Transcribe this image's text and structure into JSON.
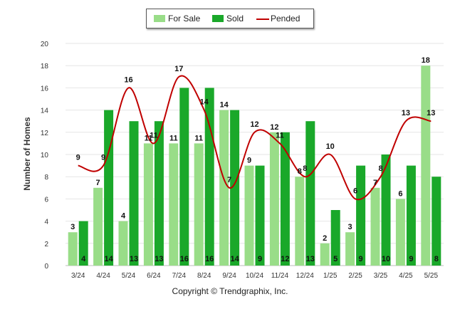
{
  "chart_data": {
    "type": "bar",
    "categories": [
      "3/24",
      "4/24",
      "5/24",
      "6/24",
      "7/24",
      "8/24",
      "9/24",
      "10/24",
      "11/24",
      "12/24",
      "1/25",
      "2/25",
      "3/25",
      "4/25",
      "5/25"
    ],
    "series": [
      {
        "name": "For Sale",
        "type": "bar",
        "color": "#99dd88",
        "values": [
          3,
          7,
          4,
          11,
          11,
          11,
          14,
          9,
          12,
          8,
          2,
          3,
          7,
          6,
          18
        ]
      },
      {
        "name": "Sold",
        "type": "bar",
        "color": "#1aa82a",
        "values": [
          4,
          14,
          13,
          13,
          16,
          16,
          14,
          9,
          12,
          13,
          5,
          9,
          10,
          9,
          8
        ]
      },
      {
        "name": "Pended",
        "type": "line",
        "color": "#c00000",
        "values": [
          9,
          9,
          16,
          11,
          17,
          14,
          7,
          12,
          11,
          8,
          10,
          6,
          8,
          13,
          13
        ]
      }
    ],
    "ylabel": "Number of Homes",
    "xlabel": "",
    "ylim": [
      0,
      20
    ],
    "yticks": [
      0,
      2,
      4,
      6,
      8,
      10,
      12,
      14,
      16,
      18,
      20
    ],
    "legend": {
      "position": "top-center",
      "items": [
        "For Sale",
        "Sold",
        "Pended"
      ]
    },
    "grid": true
  },
  "copyright": "Copyright © Trendgraphix, Inc."
}
